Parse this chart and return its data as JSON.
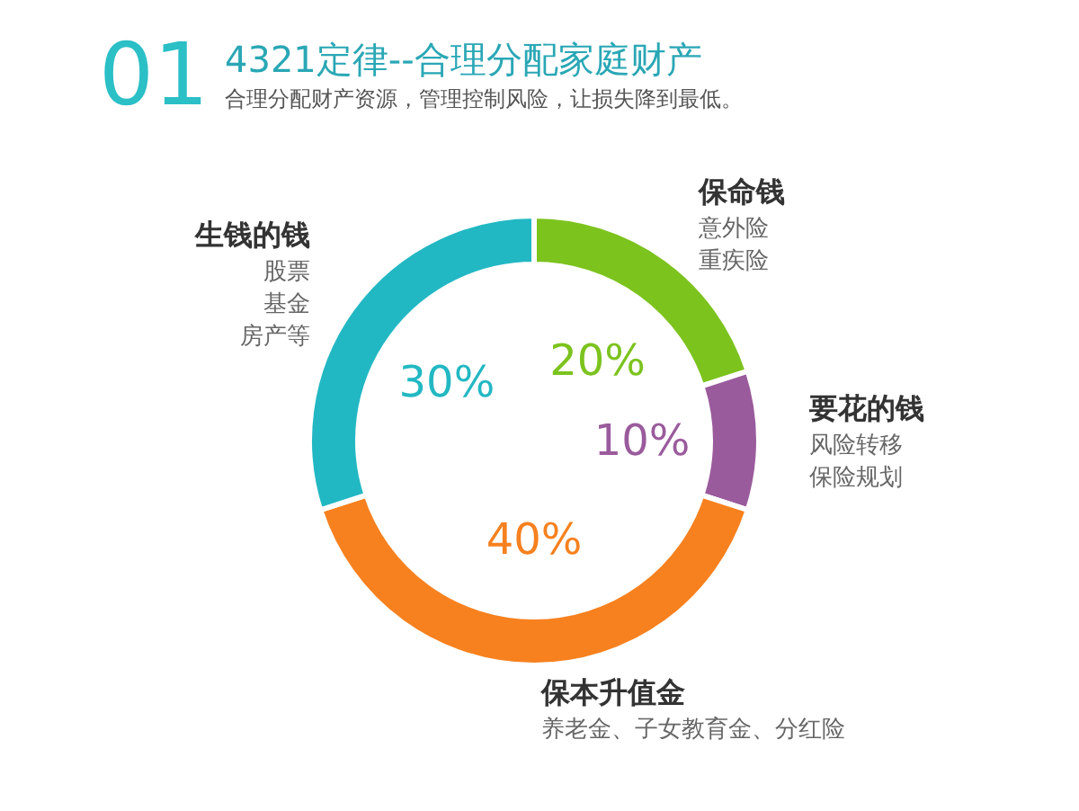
{
  "chart_data": {
    "type": "donut",
    "title": "4321定律--合理分配家庭财产",
    "subtitle": "合理分配财产资源，管理控制风险，让损失降到最低。",
    "categories": [
      "保命钱",
      "要花的钱",
      "保本升值金",
      "生钱的钱"
    ],
    "values": [
      20,
      10,
      40,
      30
    ],
    "colors": [
      "#7cc31e",
      "#9a5b9c",
      "#f7811f",
      "#22b8c3"
    ],
    "value_labels": [
      "20%",
      "10%",
      "40%",
      "30%"
    ],
    "annotations": [
      "01",
      {
        "text": "意外险",
        "x": "保命钱"
      },
      {
        "text": "重疾险",
        "x": "保命钱"
      },
      {
        "text": "风险转移",
        "x": "要花的钱"
      },
      {
        "text": "保险规划",
        "x": "要花的钱"
      },
      {
        "text": "养老金、子女教育金、分红险",
        "x": "保本升值金"
      },
      {
        "text": "股票",
        "x": "生钱的钱"
      },
      {
        "text": "基金",
        "x": "生钱的钱"
      },
      {
        "text": "房产等",
        "x": "生钱的钱"
      }
    ],
    "legend": false
  }
}
